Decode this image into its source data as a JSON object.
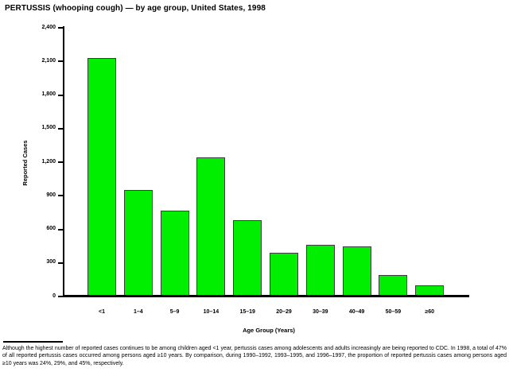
{
  "chart_data": {
    "type": "bar",
    "title": "PERTUSSIS (whooping cough) — by age group, United States, 1998",
    "categories": [
      "<1",
      "1–4",
      "5–9",
      "10–14",
      "15–19",
      "20–29",
      "30–39",
      "40–49",
      "50–59",
      "≥60"
    ],
    "values": [
      2130,
      950,
      770,
      1240,
      680,
      390,
      460,
      450,
      190,
      100
    ],
    "xlabel": "Age Group (Years)",
    "ylabel": "Reported Cases",
    "ylim": [
      0,
      2400
    ],
    "ytick_interval": 300,
    "ytick_labels": [
      "0",
      "300",
      "600",
      "900",
      "1,200",
      "1,500",
      "1,800",
      "2,100",
      "2,400"
    ],
    "grid": false,
    "legend_position": "none",
    "bar_color": "#00ee00",
    "bar_border_color": "#3c3c3c",
    "axis_color": "#000000"
  },
  "footnote": {
    "text": "Although the highest number of reported cases continues to be among children aged <1 year, pertussis cases among adolescents and adults increasingly are being reported to CDC. In 1998, a total of 47% of all reported pertussis cases occurred among persons aged ≥10 years. By comparison, during 1990–1992, 1993–1995, and 1996–1997, the proportion of reported pertussis cases among persons aged ≥10 years was 24%, 29%, and 45%, respectively."
  }
}
